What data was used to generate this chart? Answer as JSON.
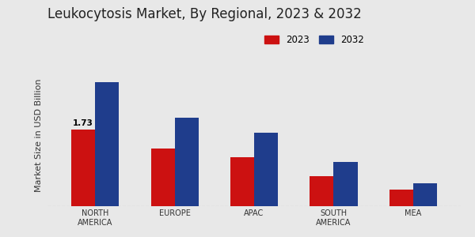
{
  "title": "Leukocytosis Market, By Regional, 2023 & 2032",
  "ylabel": "Market Size in USD Billion",
  "categories": [
    "NORTH\nAMERICA",
    "EUROPE",
    "APAC",
    "SOUTH\nAMERICA",
    "MEA"
  ],
  "values_2023": [
    1.73,
    1.3,
    1.1,
    0.68,
    0.38
  ],
  "values_2032": [
    2.8,
    2.0,
    1.65,
    1.0,
    0.52
  ],
  "color_2023": "#cc1111",
  "color_2032": "#1f3d8c",
  "annotation_text": "1.73",
  "annotation_index": 0,
  "bar_width": 0.3,
  "background_color": "#e8e8e8",
  "legend_labels": [
    "2023",
    "2032"
  ],
  "title_fontsize": 12,
  "ylabel_fontsize": 8,
  "tick_fontsize": 7,
  "ylim": [
    0,
    3.2
  ],
  "red_bottom_bar_color": "#cc1111"
}
